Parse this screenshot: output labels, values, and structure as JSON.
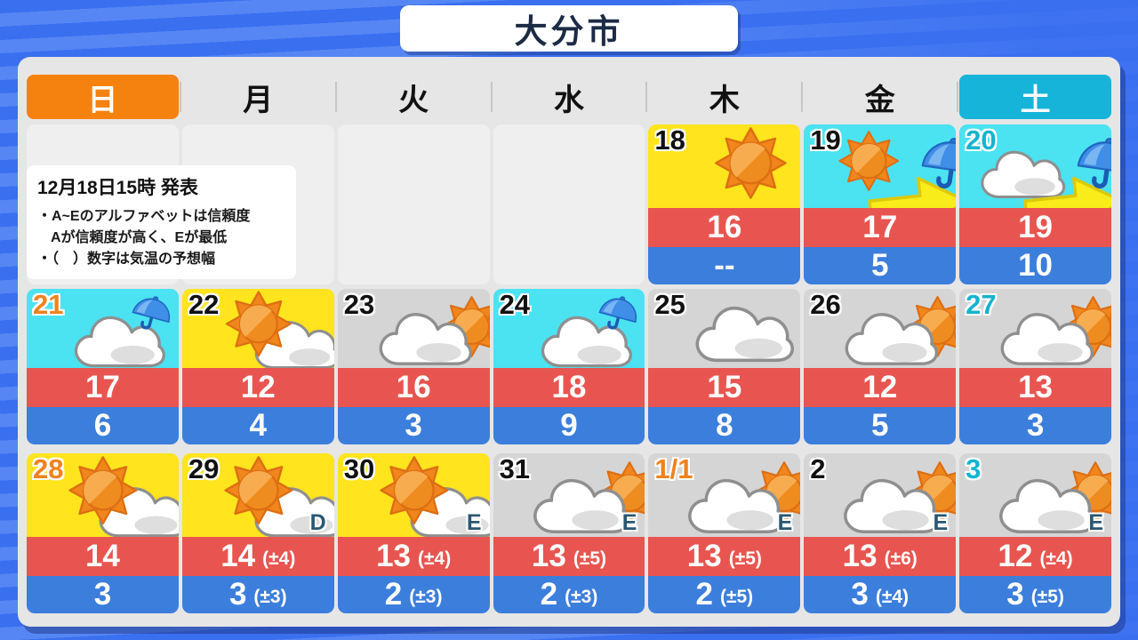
{
  "title": "大分市",
  "weekdays": [
    {
      "label": "日",
      "highlight": "orange"
    },
    {
      "label": "月",
      "highlight": null
    },
    {
      "label": "火",
      "highlight": null
    },
    {
      "label": "水",
      "highlight": null
    },
    {
      "label": "木",
      "highlight": null
    },
    {
      "label": "金",
      "highlight": null
    },
    {
      "label": "土",
      "highlight": "cyan"
    }
  ],
  "notice": {
    "issued": "12月18日15時 発表",
    "lines": [
      "・A~Eのアルファベットは信頼度",
      "Aが信頼度が高く、Eが最低",
      "・（　）数字は気温の予想幅"
    ]
  },
  "calendar": {
    "rows": [
      {
        "cells": [
          null,
          null,
          null,
          null,
          {
            "date": "18",
            "date_color": "black",
            "bg": "yellow",
            "icon": "sunny",
            "high": "16",
            "low": "--"
          },
          {
            "date": "19",
            "date_color": "black",
            "bg": "cyan",
            "icon": "sunny-then-rain",
            "high": "17",
            "low": "5"
          },
          {
            "date": "20",
            "date_color": "cyan",
            "bg": "cyan",
            "icon": "cloudy-then-rain",
            "high": "19",
            "low": "10"
          }
        ]
      },
      {
        "cells": [
          {
            "date": "21",
            "date_color": "orange",
            "bg": "cyan",
            "icon": "cloudy-with-rain",
            "high": "17",
            "low": "6"
          },
          {
            "date": "22",
            "date_color": "black",
            "bg": "yellow",
            "icon": "sunny-partly-cloudy",
            "high": "12",
            "low": "4"
          },
          {
            "date": "23",
            "date_color": "black",
            "bg": "gray",
            "icon": "cloudy-partly-sunny",
            "high": "16",
            "low": "3"
          },
          {
            "date": "24",
            "date_color": "black",
            "bg": "cyan",
            "icon": "cloudy-with-rain",
            "high": "18",
            "low": "9"
          },
          {
            "date": "25",
            "date_color": "black",
            "bg": "gray",
            "icon": "cloudy",
            "high": "15",
            "low": "8"
          },
          {
            "date": "26",
            "date_color": "black",
            "bg": "gray",
            "icon": "cloudy-partly-sunny",
            "high": "12",
            "low": "5"
          },
          {
            "date": "27",
            "date_color": "cyan",
            "bg": "gray",
            "icon": "cloudy-partly-sunny",
            "high": "13",
            "low": "3"
          }
        ]
      },
      {
        "cells": [
          {
            "date": "28",
            "date_color": "orange",
            "bg": "yellow",
            "icon": "sunny-partly-cloudy",
            "high": "14",
            "low": "3"
          },
          {
            "date": "29",
            "date_color": "black",
            "bg": "yellow",
            "icon": "sunny-partly-cloudy",
            "reliability": "D",
            "high": "14",
            "high_range": "(±4)",
            "low": "3",
            "low_range": "(±3)"
          },
          {
            "date": "30",
            "date_color": "black",
            "bg": "yellow",
            "icon": "sunny-partly-cloudy",
            "reliability": "E",
            "high": "13",
            "high_range": "(±4)",
            "low": "2",
            "low_range": "(±3)"
          },
          {
            "date": "31",
            "date_color": "black",
            "bg": "gray",
            "icon": "cloudy-partly-sunny",
            "reliability": "E",
            "high": "13",
            "high_range": "(±5)",
            "low": "2",
            "low_range": "(±3)"
          },
          {
            "date": "1/1",
            "date_color": "orange",
            "bg": "gray",
            "icon": "cloudy-partly-sunny",
            "reliability": "E",
            "high": "13",
            "high_range": "(±5)",
            "low": "2",
            "low_range": "(±5)"
          },
          {
            "date": "2",
            "date_color": "black",
            "bg": "gray",
            "icon": "cloudy-partly-sunny",
            "reliability": "E",
            "high": "13",
            "high_range": "(±6)",
            "low": "3",
            "low_range": "(±4)"
          },
          {
            "date": "3",
            "date_color": "cyan",
            "bg": "gray",
            "icon": "cloudy-partly-sunny",
            "reliability": "E",
            "high": "12",
            "high_range": "(±4)",
            "low": "3",
            "low_range": "(±5)"
          }
        ]
      }
    ]
  },
  "icons": {
    "sunny": "sun",
    "sunny-then-rain": "sun-arrow-umbrella",
    "cloudy-then-rain": "cloud-arrow-umbrella",
    "cloudy-with-rain": "cloud-with-umbrella",
    "sunny-partly-cloudy": "sun-with-cloud",
    "cloudy-partly-sunny": "cloud-with-sun",
    "cloudy": "cloud"
  },
  "colors": {
    "background_blue": "#3A6FF0",
    "stripe_blue": "#5586F3",
    "panel_gray": "#E6E6E6",
    "sunday_orange": "#F5820F",
    "saturday_cyan": "#16B4D8",
    "clear_yellow": "#FFE41E",
    "rain_cyan": "#4BE2F2",
    "cloud_gray": "#D5D5D5",
    "high_temp_red": "#E85550",
    "low_temp_blue": "#3C7EDC"
  }
}
